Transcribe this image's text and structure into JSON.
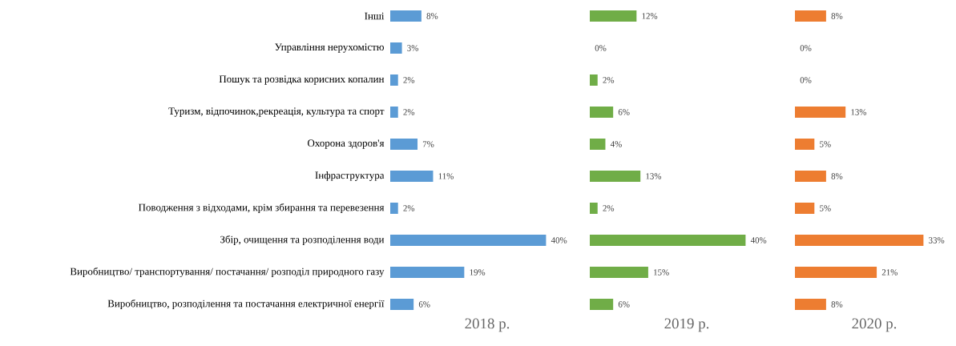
{
  "chart_data": [
    {
      "type": "bar",
      "orientation": "horizontal",
      "xlabel": "2018 р.",
      "color": "#5b9bd5",
      "tick_labels": "y",
      "categories": [
        "Інші",
        "Управління нерухомістю",
        "Пошук та розвідка корисних копалин",
        "Туризм, відпочинок,рекреація, культура та спорт",
        "Охорона здоров'я",
        "Інфраструктура",
        "Поводження з відходами, крім збирання та перевезення",
        "Збір, очищення та розподілення води",
        "Виробництво/ транспортування/ постачання/ розподіл природного газу",
        "Виробництво, розподілення та постачання електричної енергії"
      ],
      "values": [
        8,
        3,
        2,
        2,
        7,
        11,
        2,
        40,
        19,
        6
      ],
      "value_labels": [
        "8%",
        "3%",
        "2%",
        "2%",
        "7%",
        "11%",
        "2%",
        "40%",
        "19%",
        "6%"
      ]
    },
    {
      "type": "bar",
      "orientation": "horizontal",
      "xlabel": "2019 р.",
      "color": "#70ad47",
      "tick_labels": false,
      "categories": [
        null,
        null,
        null,
        null,
        null,
        null,
        null,
        null,
        null,
        null
      ],
      "values": [
        12,
        0,
        2,
        6,
        4,
        13,
        2,
        40,
        15,
        6
      ],
      "value_labels": [
        "12%",
        "0%",
        "2%",
        "6%",
        "4%",
        "13%",
        "2%",
        "40%",
        "15%",
        "6%"
      ]
    },
    {
      "type": "bar",
      "orientation": "horizontal",
      "xlabel": "2020 р.",
      "color": "#ed7d31",
      "tick_labels": false,
      "categories": [
        null,
        null,
        null,
        null,
        null,
        null,
        null,
        null,
        null,
        null
      ],
      "values": [
        8,
        0,
        0,
        13,
        5,
        8,
        5,
        33,
        21,
        8
      ],
      "value_labels": [
        "8%",
        "0%",
        "0%",
        "13%",
        "5%",
        "8%",
        "5%",
        "33%",
        "21%",
        "8%"
      ]
    }
  ]
}
